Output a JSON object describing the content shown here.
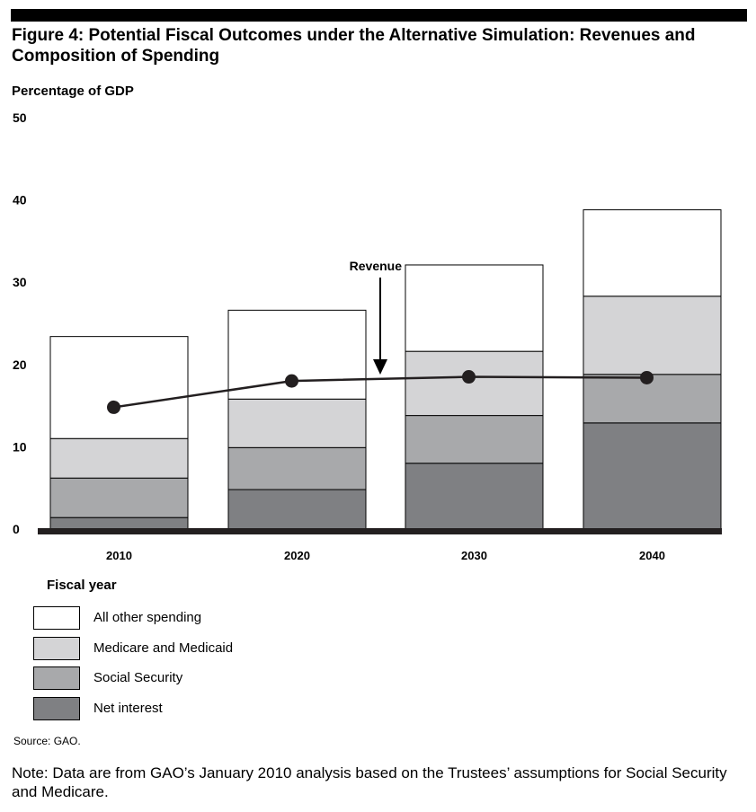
{
  "title": "Figure 4: Potential Fiscal Outcomes under the Alternative Simulation: Revenues and Composition of Spending",
  "source": "Source: GAO.",
  "note": "Note: Data are from GAO’s January 2010 analysis based on the Trustees’ assumptions for Social Security and Medicare.",
  "colors": {
    "all_other": "#ffffff",
    "medicare": "#d4d4d6",
    "social_security": "#a8a9ab",
    "net_interest": "#7f8083",
    "revenue_line": "#231f20"
  },
  "chart_data": {
    "type": "bar",
    "stacked": true,
    "ylabel": "Percentage of GDP",
    "xlabel": "Fiscal year",
    "ylim": [
      0,
      50
    ],
    "yticks": [
      "0",
      "10",
      "20",
      "30",
      "40",
      "50"
    ],
    "categories": [
      "2010",
      "2020",
      "2030",
      "2040"
    ],
    "series": [
      {
        "name": "Net interest",
        "values": [
          1.4,
          4.8,
          8.0,
          12.9
        ],
        "color": "#7f8083"
      },
      {
        "name": "Social Security",
        "values": [
          4.8,
          5.1,
          5.8,
          5.9
        ],
        "color": "#a8a9ab"
      },
      {
        "name": "Medicare and Medicaid",
        "values": [
          4.8,
          5.9,
          7.8,
          9.5
        ],
        "color": "#d4d4d6"
      },
      {
        "name": "All other spending",
        "values": [
          12.4,
          10.8,
          10.5,
          10.5
        ],
        "color": "#ffffff"
      }
    ],
    "revenue": {
      "label": "Revenue",
      "values": [
        14.8,
        18.0,
        18.5,
        18.4
      ]
    },
    "legend": [
      "All other spending",
      "Medicare and Medicaid",
      "Social Security",
      "Net interest"
    ],
    "grid": false
  }
}
